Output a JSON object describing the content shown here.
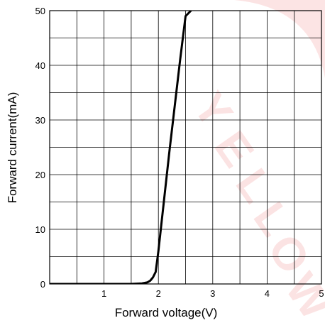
{
  "chart_data": {
    "type": "line",
    "title": "",
    "xlabel": "Forward voltage(V)",
    "ylabel": "Forward current(mA)",
    "xlim": [
      0,
      5
    ],
    "ylim": [
      0,
      50
    ],
    "x_ticks": [
      1,
      2,
      3,
      4,
      5
    ],
    "x_tick_labels": [
      "1",
      "2",
      "3",
      "4",
      "5"
    ],
    "y_ticks": [
      0,
      10,
      20,
      30,
      40,
      50
    ],
    "y_tick_labels": [
      "0",
      "10",
      "20",
      "30",
      "40",
      "50"
    ],
    "grid": true,
    "legend": false,
    "series": [
      {
        "color": "#000000",
        "x": [
          0,
          1.0,
          1.5,
          1.7,
          1.8,
          1.85,
          1.9,
          1.95,
          2.0,
          2.1,
          2.2,
          2.3,
          2.4,
          2.5,
          2.6
        ],
        "y": [
          0,
          0,
          0,
          0.1,
          0.3,
          0.6,
          1.2,
          2.2,
          6,
          15,
          24,
          32.5,
          41,
          49,
          50
        ]
      }
    ]
  },
  "watermark": {
    "text": "YELLOW",
    "color": "#e8312f"
  }
}
